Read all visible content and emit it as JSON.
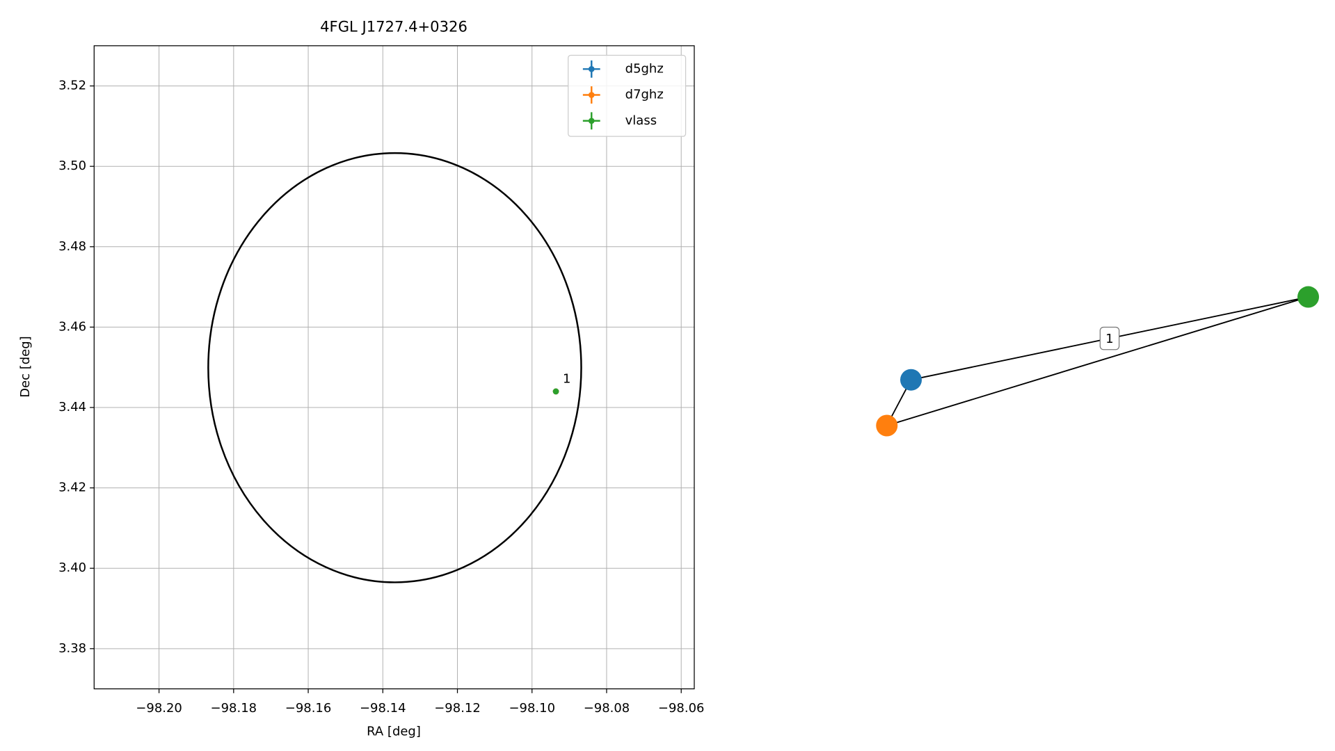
{
  "chart_data": [
    {
      "type": "scatter",
      "title": "4FGL J1727.4+0326",
      "x_label": "RA [deg]",
      "y_label": "Dec [deg]",
      "xlim": [
        -98.2174,
        -98.0565
      ],
      "ylim": [
        3.37,
        3.53
      ],
      "xticks": [
        {
          "value": -98.2,
          "label": "−98.20"
        },
        {
          "value": -98.18,
          "label": "−98.18"
        },
        {
          "value": -98.16,
          "label": "−98.16"
        },
        {
          "value": -98.14,
          "label": "−98.14"
        },
        {
          "value": -98.12,
          "label": "−98.12"
        },
        {
          "value": -98.1,
          "label": "−98.10"
        },
        {
          "value": -98.08,
          "label": "−98.08"
        },
        {
          "value": -98.06,
          "label": "−98.06"
        }
      ],
      "yticks": [
        3.38,
        {
          "value": 3.4,
          "label": "3.40"
        },
        3.42,
        3.44,
        3.46,
        3.48,
        {
          "value": 3.5,
          "label": "3.50"
        },
        3.52
      ],
      "grid": true,
      "legend": "upper right",
      "ellipse": {
        "center_x": -98.1368,
        "center_y": 3.4499,
        "semi_x": 0.05,
        "semi_y": 0.0534,
        "color": "#000000"
      },
      "series": [
        {
          "name": "d5ghz",
          "color": "#1f77b4",
          "x": [
            -98.0936
          ],
          "values": [
            3.444
          ]
        },
        {
          "name": "d7ghz",
          "color": "#ff7f0e",
          "x": [
            -98.0936
          ],
          "values": [
            3.444
          ]
        },
        {
          "name": "vlass",
          "color": "#2ca02c",
          "x": [
            -98.0936
          ],
          "values": [
            3.444
          ],
          "labels": [
            "1"
          ]
        }
      ]
    },
    {
      "type": "graph",
      "nodes": [
        {
          "color": "#1f77b4"
        },
        {
          "color": "#ff7f0e"
        },
        {
          "color": "#2ca02c"
        }
      ],
      "edges": [
        {
          "source": 0,
          "target": 1
        },
        {
          "source": 0,
          "target": 2,
          "label": "1"
        },
        {
          "source": 1,
          "target": 2
        }
      ]
    }
  ]
}
